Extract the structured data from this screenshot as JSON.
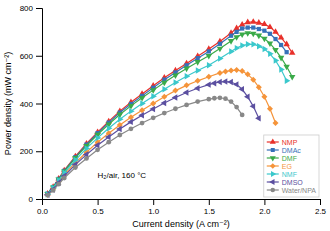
{
  "chart_data": {
    "type": "line",
    "xlabel": "Current density (A cm⁻²)",
    "ylabel": "Power density (mW cm⁻²)",
    "annotation": "H₂/air, 160 °C",
    "xlim": [
      0,
      2.5
    ],
    "ylim": [
      0,
      800
    ],
    "xticks": [
      {
        "value": 0.0,
        "label": "0.0"
      },
      0.5,
      {
        "value": 1.0,
        "label": "1.0"
      },
      1.5,
      {
        "value": 2.0,
        "label": "2.0"
      },
      2.5
    ],
    "yticks": [
      0,
      200,
      400,
      600,
      800
    ],
    "grid": false,
    "legend": "lower right",
    "series": [
      {
        "name": "NMP",
        "color": "#e8302a",
        "marker": "triangle-up",
        "x": [
          0.05,
          0.1,
          0.15,
          0.2,
          0.3,
          0.4,
          0.5,
          0.6,
          0.7,
          0.8,
          0.9,
          1.0,
          1.1,
          1.2,
          1.3,
          1.4,
          1.5,
          1.6,
          1.7,
          1.75,
          1.8,
          1.85,
          1.9,
          1.95,
          2.0,
          2.05,
          2.1,
          2.15,
          2.2,
          2.25
        ],
        "values": [
          22,
          50,
          85,
          120,
          178,
          232,
          280,
          325,
          368,
          405,
          440,
          474,
          508,
          538,
          568,
          598,
          628,
          660,
          695,
          715,
          730,
          740,
          742,
          738,
          732,
          720,
          700,
          676,
          648,
          612
        ]
      },
      {
        "name": "DMAc",
        "color": "#3671b8",
        "marker": "square",
        "x": [
          0.05,
          0.1,
          0.15,
          0.2,
          0.3,
          0.4,
          0.5,
          0.6,
          0.7,
          0.8,
          0.9,
          1.0,
          1.1,
          1.2,
          1.3,
          1.4,
          1.5,
          1.6,
          1.7,
          1.75,
          1.8,
          1.85,
          1.9,
          1.95,
          2.0,
          2.05,
          2.1,
          2.15,
          2.2
        ],
        "values": [
          22,
          50,
          84,
          118,
          175,
          228,
          276,
          320,
          362,
          398,
          432,
          466,
          500,
          530,
          560,
          590,
          618,
          650,
          684,
          700,
          714,
          718,
          718,
          712,
          705,
          692,
          670,
          645,
          615
        ]
      },
      {
        "name": "DMF",
        "color": "#3aaa49",
        "marker": "triangle-down",
        "x": [
          0.05,
          0.1,
          0.15,
          0.2,
          0.3,
          0.4,
          0.5,
          0.6,
          0.7,
          0.8,
          0.9,
          1.0,
          1.1,
          1.2,
          1.3,
          1.4,
          1.5,
          1.6,
          1.7,
          1.75,
          1.8,
          1.85,
          1.9,
          1.95,
          2.0,
          2.05,
          2.1,
          2.15,
          2.2,
          2.25
        ],
        "values": [
          22,
          49,
          82,
          116,
          172,
          223,
          270,
          313,
          354,
          390,
          424,
          456,
          488,
          518,
          547,
          574,
          600,
          630,
          662,
          678,
          690,
          695,
          693,
          685,
          672,
          652,
          625,
          592,
          555,
          512
        ]
      },
      {
        "name": "EG",
        "color": "#f5943a",
        "marker": "diamond",
        "x": [
          0.05,
          0.1,
          0.15,
          0.2,
          0.3,
          0.4,
          0.5,
          0.6,
          0.7,
          0.8,
          0.9,
          1.0,
          1.1,
          1.2,
          1.3,
          1.4,
          1.5,
          1.6,
          1.65,
          1.7,
          1.75,
          1.8,
          1.85,
          1.9,
          1.95,
          2.0,
          2.05,
          2.1
        ],
        "values": [
          18,
          42,
          72,
          102,
          152,
          196,
          238,
          275,
          310,
          342,
          372,
          400,
          428,
          454,
          476,
          495,
          512,
          528,
          534,
          538,
          540,
          536,
          522,
          500,
          468,
          428,
          378,
          318
        ]
      },
      {
        "name": "NMF",
        "color": "#3ac8cc",
        "marker": "triangle-right",
        "x": [
          0.05,
          0.1,
          0.15,
          0.2,
          0.3,
          0.4,
          0.5,
          0.6,
          0.7,
          0.8,
          0.9,
          1.0,
          1.1,
          1.2,
          1.3,
          1.4,
          1.5,
          1.6,
          1.7,
          1.75,
          1.8,
          1.85,
          1.9,
          1.95,
          2.0,
          2.05,
          2.1,
          2.15,
          2.2
        ],
        "values": [
          20,
          46,
          78,
          110,
          163,
          212,
          256,
          296,
          334,
          368,
          400,
          430,
          460,
          488,
          514,
          538,
          560,
          588,
          618,
          632,
          643,
          648,
          648,
          640,
          628,
          608,
          580,
          542,
          495
        ]
      },
      {
        "name": "DMSO",
        "color": "#5b4fa0",
        "marker": "triangle-left",
        "x": [
          0.05,
          0.1,
          0.15,
          0.2,
          0.3,
          0.4,
          0.5,
          0.6,
          0.7,
          0.8,
          0.9,
          1.0,
          1.1,
          1.2,
          1.3,
          1.4,
          1.5,
          1.55,
          1.6,
          1.65,
          1.7,
          1.75,
          1.8,
          1.85,
          1.9,
          1.95
        ],
        "values": [
          18,
          40,
          68,
          96,
          144,
          186,
          225,
          260,
          293,
          323,
          351,
          377,
          402,
          425,
          446,
          464,
          479,
          485,
          490,
          492,
          490,
          480,
          460,
          428,
          388,
          338
        ]
      },
      {
        "name": "Water/NPA",
        "color": "#888888",
        "marker": "circle",
        "x": [
          0.05,
          0.1,
          0.15,
          0.2,
          0.3,
          0.4,
          0.5,
          0.6,
          0.7,
          0.8,
          0.9,
          1.0,
          1.1,
          1.2,
          1.3,
          1.4,
          1.5,
          1.55,
          1.6,
          1.65,
          1.7,
          1.75,
          1.8
        ],
        "values": [
          16,
          36,
          62,
          88,
          132,
          170,
          206,
          238,
          268,
          294,
          318,
          340,
          360,
          378,
          394,
          408,
          418,
          422,
          424,
          420,
          408,
          385,
          352
        ]
      }
    ]
  }
}
